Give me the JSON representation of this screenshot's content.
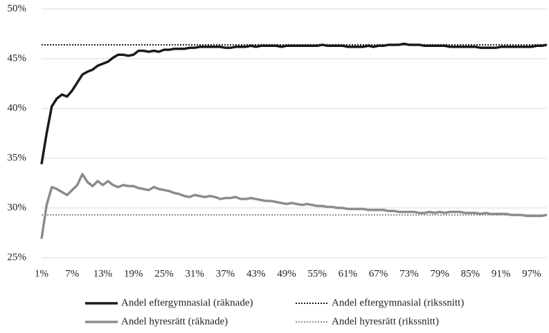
{
  "chart_data": {
    "type": "line",
    "categories": [
      "1%",
      null,
      null,
      null,
      null,
      null,
      "7%",
      null,
      null,
      null,
      null,
      null,
      "13%",
      null,
      null,
      null,
      null,
      null,
      "19%",
      null,
      null,
      null,
      null,
      null,
      "25%",
      null,
      null,
      null,
      null,
      null,
      "31%",
      null,
      null,
      null,
      null,
      null,
      "37%",
      null,
      null,
      null,
      null,
      null,
      "43%",
      null,
      null,
      null,
      null,
      null,
      "49%",
      null,
      null,
      null,
      null,
      null,
      "55%",
      null,
      null,
      null,
      null,
      null,
      "61%",
      null,
      null,
      null,
      null,
      null,
      "67%",
      null,
      null,
      null,
      null,
      null,
      "73%",
      null,
      null,
      null,
      null,
      null,
      "79%",
      null,
      null,
      null,
      null,
      null,
      "85%",
      null,
      null,
      null,
      null,
      null,
      "91%",
      null,
      null,
      null,
      null,
      null,
      "97%",
      null,
      null,
      null
    ],
    "series": [
      {
        "name": "Andel eftergymnasial (räknade)",
        "color": "#1a1a1a",
        "style": "solid",
        "values": [
          34.4,
          37.5,
          40.2,
          41.0,
          41.4,
          41.2,
          41.8,
          42.6,
          43.4,
          43.7,
          43.9,
          44.3,
          44.5,
          44.7,
          45.1,
          45.4,
          45.4,
          45.3,
          45.4,
          45.8,
          45.8,
          45.7,
          45.8,
          45.7,
          45.9,
          45.9,
          46.0,
          46.0,
          46.0,
          46.1,
          46.1,
          46.2,
          46.2,
          46.2,
          46.2,
          46.2,
          46.1,
          46.1,
          46.2,
          46.2,
          46.2,
          46.3,
          46.2,
          46.3,
          46.3,
          46.3,
          46.3,
          46.2,
          46.3,
          46.3,
          46.3,
          46.3,
          46.3,
          46.3,
          46.3,
          46.4,
          46.3,
          46.3,
          46.3,
          46.3,
          46.2,
          46.2,
          46.2,
          46.2,
          46.3,
          46.2,
          46.3,
          46.3,
          46.4,
          46.4,
          46.4,
          46.5,
          46.4,
          46.4,
          46.4,
          46.3,
          46.3,
          46.3,
          46.3,
          46.3,
          46.2,
          46.2,
          46.2,
          46.2,
          46.2,
          46.2,
          46.1,
          46.1,
          46.1,
          46.1,
          46.2,
          46.2,
          46.2,
          46.2,
          46.2,
          46.2,
          46.2,
          46.3,
          46.3,
          46.4
        ]
      },
      {
        "name": "Andel eftergymnasial (rikssnitt)",
        "color": "#1a1a1a",
        "style": "dotted",
        "values": [
          46.4,
          46.4,
          46.4,
          46.4,
          46.4,
          46.4,
          46.4,
          46.4,
          46.4,
          46.4,
          46.4,
          46.4,
          46.4,
          46.4,
          46.4,
          46.4,
          46.4,
          46.4,
          46.4,
          46.4,
          46.4,
          46.4,
          46.4,
          46.4,
          46.4,
          46.4,
          46.4,
          46.4,
          46.4,
          46.4,
          46.4,
          46.4,
          46.4,
          46.4,
          46.4,
          46.4,
          46.4,
          46.4,
          46.4,
          46.4,
          46.4,
          46.4,
          46.4,
          46.4,
          46.4,
          46.4,
          46.4,
          46.4,
          46.4,
          46.4,
          46.4,
          46.4,
          46.4,
          46.4,
          46.4,
          46.4,
          46.4,
          46.4,
          46.4,
          46.4,
          46.4,
          46.4,
          46.4,
          46.4,
          46.4,
          46.4,
          46.4,
          46.4,
          46.4,
          46.4,
          46.4,
          46.4,
          46.4,
          46.4,
          46.4,
          46.4,
          46.4,
          46.4,
          46.4,
          46.4,
          46.4,
          46.4,
          46.4,
          46.4,
          46.4,
          46.4,
          46.4,
          46.4,
          46.4,
          46.4,
          46.4,
          46.4,
          46.4,
          46.4,
          46.4,
          46.4,
          46.4,
          46.4,
          46.4,
          46.4
        ]
      },
      {
        "name": "Andel hyresrätt (räknade)",
        "color": "#8c8c8c",
        "style": "solid",
        "values": [
          26.9,
          30.3,
          32.1,
          31.9,
          31.6,
          31.3,
          31.8,
          32.3,
          33.4,
          32.6,
          32.2,
          32.7,
          32.3,
          32.7,
          32.3,
          32.1,
          32.3,
          32.2,
          32.2,
          32.0,
          31.9,
          31.8,
          32.1,
          31.9,
          31.8,
          31.7,
          31.5,
          31.4,
          31.2,
          31.1,
          31.3,
          31.2,
          31.1,
          31.2,
          31.1,
          30.9,
          31.0,
          31.0,
          31.1,
          30.9,
          30.9,
          31.0,
          30.9,
          30.8,
          30.7,
          30.7,
          30.6,
          30.5,
          30.4,
          30.5,
          30.4,
          30.3,
          30.4,
          30.3,
          30.2,
          30.2,
          30.1,
          30.1,
          30.0,
          30.0,
          29.9,
          29.9,
          29.9,
          29.9,
          29.8,
          29.8,
          29.8,
          29.8,
          29.7,
          29.7,
          29.6,
          29.6,
          29.6,
          29.6,
          29.5,
          29.5,
          29.6,
          29.5,
          29.6,
          29.5,
          29.6,
          29.6,
          29.6,
          29.5,
          29.5,
          29.5,
          29.4,
          29.5,
          29.4,
          29.4,
          29.4,
          29.4,
          29.3,
          29.3,
          29.3,
          29.2,
          29.2,
          29.2,
          29.2,
          29.3
        ]
      },
      {
        "name": "Andel hyresrätt (rikssnitt)",
        "color": "#8c8c8c",
        "style": "dotted",
        "values": [
          29.3,
          29.3,
          29.3,
          29.3,
          29.3,
          29.3,
          29.3,
          29.3,
          29.3,
          29.3,
          29.3,
          29.3,
          29.3,
          29.3,
          29.3,
          29.3,
          29.3,
          29.3,
          29.3,
          29.3,
          29.3,
          29.3,
          29.3,
          29.3,
          29.3,
          29.3,
          29.3,
          29.3,
          29.3,
          29.3,
          29.3,
          29.3,
          29.3,
          29.3,
          29.3,
          29.3,
          29.3,
          29.3,
          29.3,
          29.3,
          29.3,
          29.3,
          29.3,
          29.3,
          29.3,
          29.3,
          29.3,
          29.3,
          29.3,
          29.3,
          29.3,
          29.3,
          29.3,
          29.3,
          29.3,
          29.3,
          29.3,
          29.3,
          29.3,
          29.3,
          29.3,
          29.3,
          29.3,
          29.3,
          29.3,
          29.3,
          29.3,
          29.3,
          29.3,
          29.3,
          29.3,
          29.3,
          29.3,
          29.3,
          29.3,
          29.3,
          29.3,
          29.3,
          29.3,
          29.3,
          29.3,
          29.3,
          29.3,
          29.3,
          29.3,
          29.3,
          29.3,
          29.3,
          29.3,
          29.3,
          29.3,
          29.3,
          29.3,
          29.3,
          29.3,
          29.3,
          29.3,
          29.3,
          29.3,
          29.3
        ]
      }
    ],
    "ylim": [
      25,
      50
    ],
    "yticks": [
      {
        "value": 25,
        "label": "25%"
      },
      {
        "value": 30,
        "label": "30%"
      },
      {
        "value": 35,
        "label": "35%"
      },
      {
        "value": 40,
        "label": "40%"
      },
      {
        "value": 45,
        "label": "45%"
      },
      {
        "value": 50,
        "label": "50%"
      }
    ],
    "grid": true
  }
}
